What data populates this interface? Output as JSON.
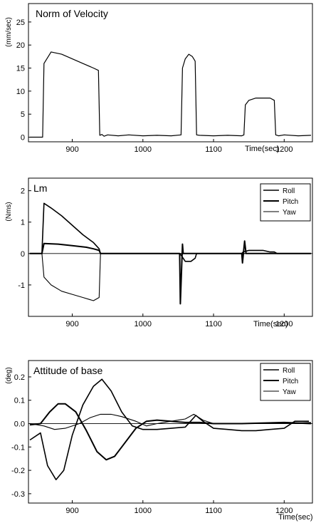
{
  "chart_data": [
    {
      "type": "line",
      "title": "Norm of Velocity",
      "ylabel": "(mm/sec)",
      "xlabel": "Time(sec)",
      "xlim": [
        838,
        1240
      ],
      "ylim": [
        -1,
        29
      ],
      "xticks": [
        900,
        1000,
        1100,
        1200
      ],
      "yticks": [
        0,
        5,
        10,
        15,
        20,
        25
      ],
      "zero_line": false,
      "series": [
        {
          "x": [
            840,
            858,
            860,
            870,
            885,
            900,
            915,
            930,
            937,
            939,
            942,
            945,
            950,
            965,
            980,
            1000,
            1020,
            1040,
            1054,
            1056,
            1060,
            1065,
            1070,
            1074,
            1076,
            1080,
            1100,
            1120,
            1140,
            1143,
            1145,
            1150,
            1160,
            1170,
            1180,
            1186,
            1188,
            1192,
            1200,
            1220,
            1238
          ],
          "y": [
            0,
            0,
            16,
            18.5,
            18,
            17,
            16,
            15,
            14.5,
            0.4,
            0.6,
            0.2,
            0.5,
            0.3,
            0.5,
            0.3,
            0.4,
            0.3,
            0.5,
            15,
            17,
            18,
            17.5,
            16.5,
            0.5,
            0.4,
            0.3,
            0.4,
            0.3,
            0.5,
            7,
            8,
            8.5,
            8.5,
            8.5,
            8,
            0.5,
            0.3,
            0.5,
            0.3,
            0.4
          ]
        }
      ],
      "legend": []
    },
    {
      "type": "line",
      "title": "Lm",
      "ylabel": "(Nms)",
      "xlabel": "Time(sec)",
      "xlim": [
        838,
        1240
      ],
      "ylim": [
        -2.0,
        2.4
      ],
      "xticks": [
        900,
        1000,
        1100,
        1200
      ],
      "yticks": [
        -1,
        0,
        1,
        2
      ],
      "zero_line": true,
      "legend": [
        "Roll",
        "Pitch",
        "Yaw"
      ],
      "legend_position": "top-right",
      "series": [
        {
          "name": "Roll",
          "x": [
            840,
            857,
            860,
            870,
            885,
            900,
            915,
            930,
            938,
            940,
            1052,
            1054,
            1060,
            1068,
            1074,
            1076,
            1140,
            1142,
            1150,
            1160,
            1170,
            1180,
            1186,
            1190,
            1238
          ],
          "y": [
            0,
            0,
            1.6,
            1.45,
            1.2,
            0.9,
            0.6,
            0.35,
            0.15,
            0,
            0,
            -0.05,
            -0.25,
            -0.25,
            -0.15,
            0,
            0,
            0.05,
            0.1,
            0.1,
            0.1,
            0.05,
            0.05,
            0,
            0
          ]
        },
        {
          "name": "Pitch",
          "x": [
            840,
            857,
            860,
            880,
            900,
            920,
            930,
            938,
            940,
            1052,
            1053,
            1056,
            1057,
            1140,
            1141,
            1144,
            1146,
            1238
          ],
          "y": [
            0,
            0,
            0.32,
            0.3,
            0.25,
            0.2,
            0.15,
            0.1,
            0,
            0,
            -1.6,
            0.3,
            0,
            0,
            -0.3,
            0.4,
            0,
            0
          ]
        },
        {
          "name": "Yaw",
          "x": [
            840,
            857,
            860,
            870,
            885,
            900,
            915,
            930,
            938,
            940,
            1238
          ],
          "y": [
            0,
            0,
            -0.75,
            -1.0,
            -1.2,
            -1.3,
            -1.4,
            -1.5,
            -1.4,
            0,
            0
          ]
        }
      ]
    },
    {
      "type": "line",
      "title": "Attitude of base",
      "ylabel": "(deg)",
      "xlabel": "Time(sec)",
      "xlim": [
        838,
        1240
      ],
      "ylim": [
        -0.34,
        0.27
      ],
      "xticks": [
        900,
        1000,
        1100,
        1200
      ],
      "yticks": [
        -0.3,
        -0.2,
        -0.1,
        0.0,
        0.1,
        0.2
      ],
      "ytick_labels": [
        "-0.3",
        "-0.2",
        "-0.1",
        "0.0",
        "0.1",
        "0.2"
      ],
      "zero_line": true,
      "legend": [
        "Roll",
        "Pitch",
        "Yaw"
      ],
      "legend_position": "top-right",
      "series": [
        {
          "name": "Roll",
          "x": [
            840,
            855,
            865,
            877,
            888,
            900,
            915,
            930,
            942,
            955,
            970,
            985,
            1000,
            1020,
            1040,
            1060,
            1075,
            1085,
            1100,
            1120,
            1140,
            1160,
            1180,
            1200,
            1215,
            1235
          ],
          "y": [
            -0.07,
            -0.04,
            -0.18,
            -0.24,
            -0.2,
            -0.05,
            0.08,
            0.16,
            0.19,
            0.14,
            0.05,
            -0.01,
            -0.025,
            -0.025,
            -0.02,
            -0.015,
            0.035,
            0.01,
            -0.02,
            -0.025,
            -0.03,
            -0.03,
            -0.025,
            -0.02,
            0.01,
            0.01
          ]
        },
        {
          "name": "Pitch",
          "x": [
            840,
            855,
            868,
            880,
            890,
            905,
            920,
            935,
            948,
            960,
            975,
            990,
            1005,
            1020,
            1040,
            1060,
            1080,
            1100,
            1140,
            1200,
            1238
          ],
          "y": [
            -0.005,
            0.0,
            0.05,
            0.085,
            0.085,
            0.05,
            -0.03,
            -0.12,
            -0.155,
            -0.14,
            -0.08,
            -0.02,
            0.01,
            0.015,
            0.01,
            0.005,
            0.005,
            0.0,
            0.0,
            0.005,
            0.0
          ]
        },
        {
          "name": "Yaw",
          "x": [
            840,
            860,
            875,
            890,
            910,
            925,
            940,
            955,
            970,
            990,
            1005,
            1020,
            1040,
            1060,
            1072,
            1085,
            1100,
            1140,
            1180,
            1238
          ],
          "y": [
            0,
            -0.01,
            -0.025,
            -0.02,
            0.0,
            0.025,
            0.04,
            0.04,
            0.03,
            0.01,
            -0.01,
            0.0,
            0.01,
            0.02,
            0.04,
            0.015,
            0.0,
            0.0,
            0.0,
            0.005
          ]
        }
      ]
    }
  ]
}
